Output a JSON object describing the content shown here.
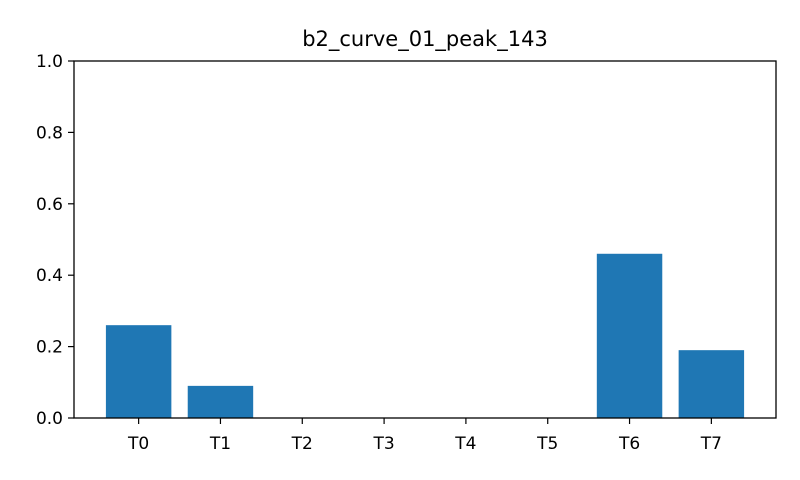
{
  "chart_data": {
    "type": "bar",
    "title": "b2_curve_01_peak_143",
    "xlabel": "",
    "ylabel": "",
    "categories": [
      "T0",
      "T1",
      "T2",
      "T3",
      "T4",
      "T5",
      "T6",
      "T7"
    ],
    "values": [
      0.26,
      0.09,
      0.0,
      0.0,
      0.0,
      0.0,
      0.46,
      0.19
    ],
    "ylim": [
      0,
      1.0
    ],
    "yticks": [
      "0.0",
      "0.2",
      "0.4",
      "0.6",
      "0.8",
      "1.0"
    ],
    "grid": false,
    "bar_color": "#1f77b4"
  }
}
